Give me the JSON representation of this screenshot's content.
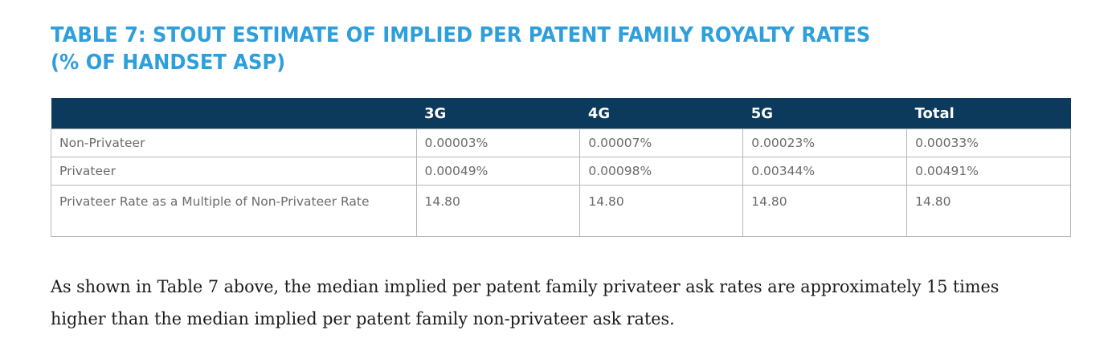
{
  "title": {
    "line1": "TABLE 7: STOUT ESTIMATE OF IMPLIED PER PATENT FAMILY ROYALTY RATES",
    "line2": "(% OF HANDSET ASP)"
  },
  "table": {
    "headers": [
      "",
      "3G",
      "4G",
      "5G",
      "Total"
    ],
    "rows": [
      {
        "label": "Non-Privateer",
        "values": [
          "0.00003%",
          "0.00007%",
          "0.00023%",
          "0.00033%"
        ]
      },
      {
        "label": "Privateer",
        "values": [
          "0.00049%",
          "0.00098%",
          "0.00344%",
          "0.00491%"
        ]
      },
      {
        "label": "Privateer Rate as a Multiple of Non-Privateer Rate",
        "values": [
          "14.80",
          "14.80",
          "14.80",
          "14.80"
        ]
      }
    ]
  },
  "paragraph": "As shown in Table 7 above, the median implied per patent family privateer ask rates are approximately 15 times higher than the median implied per patent family non-privateer ask rates.",
  "colors": {
    "title": "#2e9fdb",
    "header_bg": "#0b3a5c",
    "header_text": "#ffffff",
    "cell_text": "#6b6b6b",
    "border": "#b7b7b7"
  }
}
